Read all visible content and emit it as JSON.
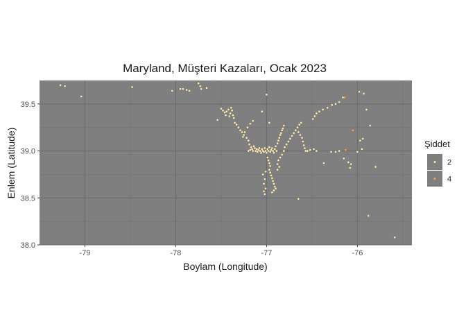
{
  "chart_data": {
    "type": "scatter",
    "title": "Maryland, Müşteri Kazaları, Ocak 2023",
    "xlabel": "Boylam (Longitude)",
    "ylabel": "Enlem (Latitude)",
    "xlim": [
      -79.5,
      -75.4
    ],
    "ylim": [
      38.0,
      39.75
    ],
    "xticks": [
      -79,
      -78,
      -77,
      -76
    ],
    "xtick_labels": [
      "-79",
      "-78",
      "-77",
      "-76"
    ],
    "yticks": [
      38.0,
      38.5,
      39.0,
      39.5
    ],
    "ytick_labels": [
      "38.0",
      "38.5",
      "39.0",
      "39.5"
    ],
    "grid": true,
    "panel_color": "#7f7f7f",
    "grid_major_color": "#6b6b6b",
    "grid_minor_color": "#757575",
    "legend": {
      "title": "Şiddet",
      "position": "right",
      "items": [
        {
          "label": "2",
          "color": "#ffe9a6"
        },
        {
          "label": "4",
          "color": "#f4a050"
        }
      ]
    },
    "series": [
      {
        "name": "2",
        "color": "#ffe9a6",
        "points": [
          [
            -79.27,
            39.7
          ],
          [
            -79.22,
            39.69
          ],
          [
            -79.04,
            39.58
          ],
          [
            -78.48,
            39.68
          ],
          [
            -78.04,
            39.64
          ],
          [
            -77.95,
            39.66
          ],
          [
            -77.92,
            39.66
          ],
          [
            -77.88,
            39.65
          ],
          [
            -77.85,
            39.64
          ],
          [
            -77.75,
            39.72
          ],
          [
            -77.73,
            39.69
          ],
          [
            -77.72,
            39.66
          ],
          [
            -77.66,
            39.67
          ],
          [
            -77.54,
            39.33
          ],
          [
            -77.5,
            39.45
          ],
          [
            -77.48,
            39.43
          ],
          [
            -77.46,
            39.41
          ],
          [
            -77.45,
            39.38
          ],
          [
            -77.44,
            39.42
          ],
          [
            -77.42,
            39.44
          ],
          [
            -77.4,
            39.4
          ],
          [
            -77.41,
            39.37
          ],
          [
            -77.39,
            39.46
          ],
          [
            -77.38,
            39.43
          ],
          [
            -77.37,
            39.38
          ],
          [
            -77.36,
            39.35
          ],
          [
            -77.35,
            39.3
          ],
          [
            -77.33,
            39.28
          ],
          [
            -77.31,
            39.25
          ],
          [
            -77.29,
            39.22
          ],
          [
            -77.27,
            39.2
          ],
          [
            -77.25,
            39.17
          ],
          [
            -77.22,
            39.14
          ],
          [
            -77.2,
            39.11
          ],
          [
            -77.19,
            39.07
          ],
          [
            -77.17,
            39.04
          ],
          [
            -77.16,
            39.02
          ],
          [
            -77.2,
            39.0
          ],
          [
            -77.18,
            39.01
          ],
          [
            -77.15,
            39.0
          ],
          [
            -77.14,
            39.05
          ],
          [
            -77.13,
            39.03
          ],
          [
            -77.12,
            39.0
          ],
          [
            -77.11,
            39.02
          ],
          [
            -77.1,
            38.99
          ],
          [
            -77.09,
            39.01
          ],
          [
            -77.08,
            39.03
          ],
          [
            -77.07,
            39.0
          ],
          [
            -77.06,
            38.98
          ],
          [
            -77.05,
            39.02
          ],
          [
            -77.04,
            39.0
          ],
          [
            -77.03,
            38.99
          ],
          [
            -77.02,
            39.03
          ],
          [
            -77.01,
            39.0
          ],
          [
            -77.0,
            38.98
          ],
          [
            -76.99,
            39.02
          ],
          [
            -76.98,
            39.0
          ],
          [
            -76.97,
            39.04
          ],
          [
            -76.96,
            38.99
          ],
          [
            -76.95,
            39.01
          ],
          [
            -76.94,
            39.03
          ],
          [
            -76.93,
            39.0
          ],
          [
            -76.92,
            38.98
          ],
          [
            -76.91,
            39.02
          ],
          [
            -76.9,
            39.05
          ],
          [
            -76.89,
            39.0
          ],
          [
            -76.88,
            39.08
          ],
          [
            -76.87,
            39.11
          ],
          [
            -76.86,
            39.14
          ],
          [
            -76.85,
            39.17
          ],
          [
            -76.84,
            39.19
          ],
          [
            -76.83,
            39.22
          ],
          [
            -76.82,
            39.24
          ],
          [
            -76.81,
            39.27
          ],
          [
            -77.26,
            39.15
          ],
          [
            -77.24,
            39.2
          ],
          [
            -77.21,
            39.25
          ],
          [
            -77.18,
            39.29
          ],
          [
            -77.15,
            39.32
          ],
          [
            -77.0,
            39.6
          ],
          [
            -77.05,
            39.42
          ],
          [
            -76.97,
            39.3
          ],
          [
            -76.99,
            38.93
          ],
          [
            -76.98,
            38.9
          ],
          [
            -76.97,
            38.87
          ],
          [
            -76.96,
            38.84
          ],
          [
            -76.97,
            38.8
          ],
          [
            -76.96,
            38.77
          ],
          [
            -76.95,
            38.74
          ],
          [
            -76.94,
            38.71
          ],
          [
            -76.93,
            38.68
          ],
          [
            -76.92,
            38.65
          ],
          [
            -76.91,
            38.62
          ],
          [
            -76.9,
            38.6
          ],
          [
            -76.92,
            38.58
          ],
          [
            -76.94,
            38.56
          ],
          [
            -77.02,
            38.54
          ],
          [
            -77.03,
            38.57
          ],
          [
            -77.01,
            38.6
          ],
          [
            -77.03,
            38.65
          ],
          [
            -77.02,
            38.7
          ],
          [
            -77.04,
            38.75
          ],
          [
            -77.01,
            38.78
          ],
          [
            -76.88,
            38.8
          ],
          [
            -76.86,
            38.83
          ],
          [
            -76.88,
            38.86
          ],
          [
            -76.87,
            38.9
          ],
          [
            -76.85,
            38.93
          ],
          [
            -76.83,
            38.96
          ],
          [
            -76.81,
            39.0
          ],
          [
            -76.8,
            39.04
          ],
          [
            -76.78,
            39.07
          ],
          [
            -76.76,
            39.1
          ],
          [
            -76.74,
            39.13
          ],
          [
            -76.72,
            39.16
          ],
          [
            -76.7,
            39.19
          ],
          [
            -76.68,
            39.22
          ],
          [
            -76.66,
            39.25
          ],
          [
            -76.64,
            39.28
          ],
          [
            -76.62,
            39.3
          ],
          [
            -76.65,
            39.2
          ],
          [
            -76.63,
            39.17
          ],
          [
            -76.61,
            39.14
          ],
          [
            -76.6,
            39.1
          ],
          [
            -76.59,
            39.06
          ],
          [
            -76.58,
            39.03
          ],
          [
            -76.57,
            39.0
          ],
          [
            -76.55,
            39.0
          ],
          [
            -76.52,
            39.01
          ],
          [
            -76.48,
            39.02
          ],
          [
            -76.45,
            39.0
          ],
          [
            -76.65,
            38.49
          ],
          [
            -76.49,
            39.34
          ],
          [
            -76.47,
            39.37
          ],
          [
            -76.45,
            39.4
          ],
          [
            -76.42,
            39.42
          ],
          [
            -76.38,
            39.44
          ],
          [
            -76.33,
            39.46
          ],
          [
            -76.28,
            39.49
          ],
          [
            -76.24,
            39.5
          ],
          [
            -76.2,
            39.52
          ],
          [
            -76.16,
            39.57
          ],
          [
            -76.37,
            38.87
          ],
          [
            -76.29,
            38.99
          ],
          [
            -76.24,
            38.99
          ],
          [
            -76.2,
            39.0
          ],
          [
            -76.15,
            38.92
          ],
          [
            -76.1,
            38.88
          ],
          [
            -76.07,
            38.86
          ],
          [
            -76.08,
            38.82
          ],
          [
            -76.0,
            38.99
          ],
          [
            -75.95,
            39.02
          ],
          [
            -75.98,
            39.63
          ],
          [
            -75.93,
            39.61
          ],
          [
            -75.9,
            39.44
          ],
          [
            -75.97,
            39.11
          ],
          [
            -75.94,
            39.13
          ],
          [
            -75.86,
            39.27
          ],
          [
            -75.8,
            38.83
          ],
          [
            -75.88,
            38.31
          ],
          [
            -75.59,
            38.08
          ]
        ]
      },
      {
        "name": "4",
        "color": "#f4a050",
        "points": [
          [
            -76.05,
            39.22
          ],
          [
            -76.14,
            39.57
          ],
          [
            -76.13,
            39.01
          ]
        ]
      }
    ]
  }
}
